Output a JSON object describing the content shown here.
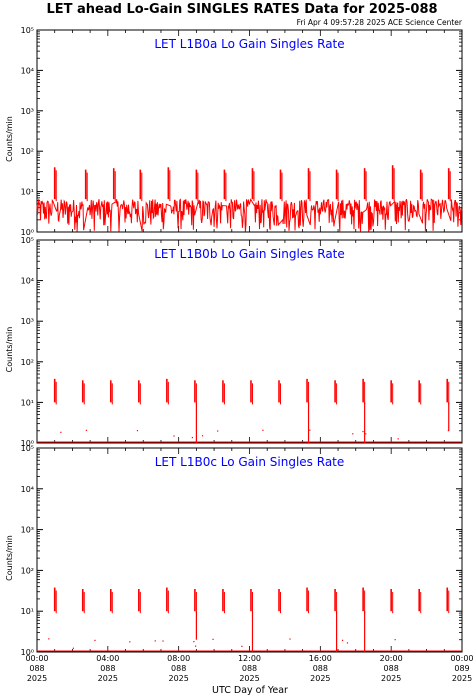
{
  "page": {
    "title": "LET ahead Lo-Gain SINGLES RATES Data for 2025-088",
    "timestamp": "Fri Apr  4 09:57:28 2025 ACE Science Center",
    "xaxis_label": "UTC Day of Year",
    "colors": {
      "trace": "#ff0000",
      "panel_title": "#0000ff",
      "axes": "#000000",
      "background": "#ffffff"
    }
  },
  "chart_data": [
    {
      "type": "line",
      "title": "LET L1B0a Lo Gain Singles Rate",
      "ylabel": "Counts/min",
      "yscale": "log",
      "ylim": [
        1,
        100000
      ],
      "y_tick_labels": [
        "10⁰",
        "10¹",
        "10²",
        "10³",
        "10⁴",
        "10⁵"
      ],
      "xlim": [
        "00:00",
        "24:00"
      ],
      "baseline": {
        "min": 1,
        "max": 6.5
      },
      "spikes": [
        {
          "x": "01:00",
          "y": 40
        },
        {
          "x": "02:45",
          "y": 35
        },
        {
          "x": "04:20",
          "y": 38
        },
        {
          "x": "05:50",
          "y": 35
        },
        {
          "x": "07:25",
          "y": 40
        },
        {
          "x": "09:00",
          "y": 35
        },
        {
          "x": "10:35",
          "y": 35
        },
        {
          "x": "12:10",
          "y": 38
        },
        {
          "x": "13:45",
          "y": 35
        },
        {
          "x": "15:20",
          "y": 38
        },
        {
          "x": "16:55",
          "y": 35
        },
        {
          "x": "18:30",
          "y": 38
        },
        {
          "x": "20:05",
          "y": 45
        },
        {
          "x": "21:40",
          "y": 35
        },
        {
          "x": "23:15",
          "y": 38
        }
      ]
    },
    {
      "type": "line",
      "title": "LET L1B0b Lo Gain Singles Rate",
      "ylabel": "Counts/min",
      "yscale": "log",
      "ylim": [
        1,
        100000
      ],
      "y_tick_labels": [
        "10⁰",
        "10¹",
        "10²",
        "10³",
        "10⁴",
        "10⁵"
      ],
      "xlim": [
        "00:00",
        "24:00"
      ],
      "baseline": {
        "min": 0.9,
        "max": 0.95
      },
      "spikes": [
        {
          "x": "01:00",
          "y": 38
        },
        {
          "x": "02:35",
          "y": 35
        },
        {
          "x": "04:10",
          "y": 35
        },
        {
          "x": "05:45",
          "y": 35
        },
        {
          "x": "07:20",
          "y": 38
        },
        {
          "x": "08:55",
          "y": 35
        },
        {
          "x": "10:30",
          "y": 35
        },
        {
          "x": "12:05",
          "y": 35
        },
        {
          "x": "13:40",
          "y": 35
        },
        {
          "x": "15:15",
          "y": 38
        },
        {
          "x": "16:50",
          "y": 35
        },
        {
          "x": "18:25",
          "y": 38
        },
        {
          "x": "20:00",
          "y": 35
        },
        {
          "x": "21:35",
          "y": 35
        },
        {
          "x": "23:10",
          "y": 38
        }
      ],
      "drops": [
        {
          "x": "08:55",
          "from": 10,
          "to": 0.9
        },
        {
          "x": "15:15",
          "from": 10,
          "to": 0.9
        },
        {
          "x": "18:25",
          "from": 10,
          "to": 0.9
        },
        {
          "x": "23:10",
          "from": 10,
          "to": 2
        }
      ]
    },
    {
      "type": "line",
      "title": "LET L1B0c Lo Gain Singles Rate",
      "ylabel": "Counts/min",
      "yscale": "log",
      "ylim": [
        1,
        100000
      ],
      "y_tick_labels": [
        "10⁰",
        "10¹",
        "10²",
        "10³",
        "10⁴",
        "10⁵"
      ],
      "xlim": [
        "00:00",
        "24:00"
      ],
      "baseline": {
        "min": 0.9,
        "max": 0.95
      },
      "spikes": [
        {
          "x": "01:00",
          "y": 38
        },
        {
          "x": "02:35",
          "y": 35
        },
        {
          "x": "04:10",
          "y": 35
        },
        {
          "x": "05:45",
          "y": 35
        },
        {
          "x": "07:20",
          "y": 38
        },
        {
          "x": "08:55",
          "y": 35
        },
        {
          "x": "10:30",
          "y": 35
        },
        {
          "x": "12:05",
          "y": 35
        },
        {
          "x": "13:40",
          "y": 35
        },
        {
          "x": "15:15",
          "y": 38
        },
        {
          "x": "16:50",
          "y": 35
        },
        {
          "x": "18:25",
          "y": 38
        },
        {
          "x": "20:00",
          "y": 35
        },
        {
          "x": "21:35",
          "y": 35
        },
        {
          "x": "23:10",
          "y": 38
        }
      ],
      "drops": [
        {
          "x": "08:55",
          "from": 10,
          "to": 2
        },
        {
          "x": "12:05",
          "from": 10,
          "to": 0.9
        },
        {
          "x": "16:50",
          "from": 10,
          "to": 0.9
        },
        {
          "x": "18:25",
          "from": 10,
          "to": 0.9
        }
      ]
    }
  ],
  "x_tick_labels": [
    {
      "time": "00:00",
      "day": "088",
      "year": "2025"
    },
    {
      "time": "04:00",
      "day": "088",
      "year": "2025"
    },
    {
      "time": "08:00",
      "day": "088",
      "year": "2025"
    },
    {
      "time": "12:00",
      "day": "088",
      "year": "2025"
    },
    {
      "time": "16:00",
      "day": "088",
      "year": "2025"
    },
    {
      "time": "20:00",
      "day": "088",
      "year": "2025"
    },
    {
      "time": "00:00",
      "day": "089",
      "year": "2025"
    }
  ]
}
